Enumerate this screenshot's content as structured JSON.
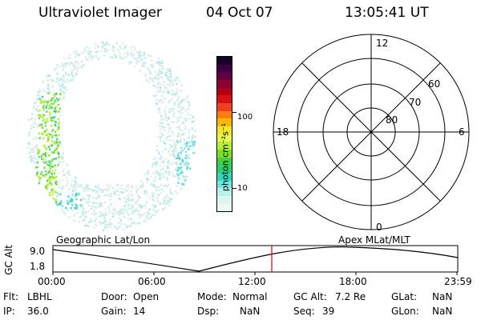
{
  "header": {
    "instrument": "Ultraviolet Imager",
    "date": "04 Oct 07",
    "time": "13:05:41 UT"
  },
  "colorbar": {
    "unit_label": "photon cm⁻²s⁻¹",
    "ticks": [
      "100",
      "10"
    ],
    "colors": [
      "#140028",
      "#3a0040",
      "#600045",
      "#8a0030",
      "#b00018",
      "#d81010",
      "#f04020",
      "#f88010",
      "#f8b808",
      "#f8e820",
      "#e8f84a",
      "#b4f038",
      "#7ce020",
      "#40d040",
      "#28d070",
      "#30d8b8",
      "#70e8e0",
      "#b8f0ec",
      "#dcf4f0",
      "#ecf6f2"
    ]
  },
  "polar": {
    "mlt_labels": {
      "top": "12",
      "bottom": "0",
      "left": "18",
      "right": "6"
    },
    "lat_labels": [
      "60",
      "70",
      "80"
    ]
  },
  "timeline": {
    "left_label": "Geographic Lat/Lon",
    "right_label": "Apex MLat/MLT",
    "axis_label": "GC Alt",
    "y_ticks": [
      "9.0",
      "1.8"
    ],
    "x_ticks": [
      "00:00",
      "06:00",
      "12:00",
      "18:00",
      "23:59"
    ],
    "marker_color": "#e00000"
  },
  "status": {
    "row1": [
      {
        "label": "Flt:",
        "value": "LBHL"
      },
      {
        "label": "Door:",
        "value": "Open"
      },
      {
        "label": "Mode:",
        "value": "Normal"
      },
      {
        "label": "GC Alt:",
        "value": "7.2 Re"
      },
      {
        "label": "GLat:",
        "value": "NaN"
      }
    ],
    "row2": [
      {
        "label": "IP:",
        "value": "36.0"
      },
      {
        "label": "Gain:",
        "value": "14"
      },
      {
        "label": "Dsp:",
        "value": "NaN"
      },
      {
        "label": "Seq:",
        "value": "39"
      },
      {
        "label": "GLon:",
        "value": "NaN"
      }
    ]
  }
}
